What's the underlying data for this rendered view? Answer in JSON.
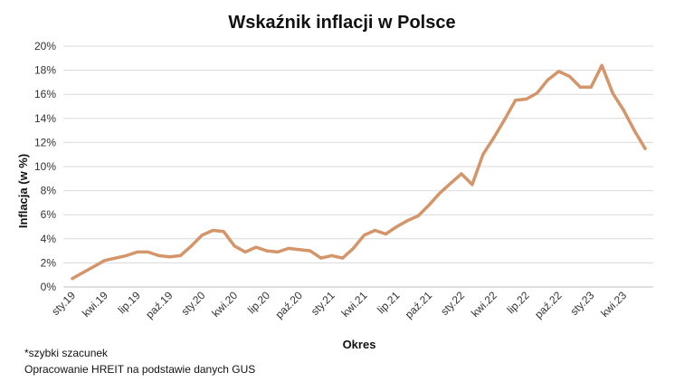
{
  "chart_data": {
    "type": "line",
    "title": "Wskaźnik inflacji w Polsce",
    "xlabel": "Okres",
    "ylabel": "Inflacja (w %)",
    "ylim": [
      0,
      20
    ],
    "yticks": [
      "0%",
      "2%",
      "4%",
      "6%",
      "8%",
      "10%",
      "12%",
      "14%",
      "16%",
      "18%",
      "20%"
    ],
    "grid": true,
    "line_color": "#d4956a",
    "x_tick_labels": [
      "sty.19",
      "kwi.19",
      "lip.19",
      "paź.19",
      "sty.20",
      "kwi.20",
      "lip.20",
      "paź.20",
      "sty.21",
      "kwi.21",
      "lip.21",
      "paź.21",
      "sty.22",
      "kwi.22",
      "lip.22",
      "paź.22",
      "sty.23",
      "kwi.23"
    ],
    "x": [
      "sty.19",
      "lut.19",
      "mar.19",
      "kwi.19",
      "maj.19",
      "cze.19",
      "lip.19",
      "sie.19",
      "wrz.19",
      "paź.19",
      "lis.19",
      "gru.19",
      "sty.20",
      "lut.20",
      "mar.20",
      "kwi.20",
      "maj.20",
      "cze.20",
      "lip.20",
      "sie.20",
      "wrz.20",
      "paź.20",
      "lis.20",
      "gru.20",
      "sty.21",
      "lut.21",
      "mar.21",
      "kwi.21",
      "maj.21",
      "cze.21",
      "lip.21",
      "sie.21",
      "wrz.21",
      "paź.21",
      "lis.21",
      "gru.21",
      "sty.22",
      "lut.22",
      "mar.22",
      "kwi.22",
      "maj.22",
      "cze.22",
      "lip.22",
      "sie.22",
      "wrz.22",
      "paź.22",
      "lis.22",
      "gru.22",
      "sty.23",
      "lut.23",
      "mar.23",
      "kwi.23",
      "maj.23",
      "cze.23"
    ],
    "series": [
      {
        "values": [
          0.7,
          1.2,
          1.7,
          2.2,
          2.4,
          2.6,
          2.9,
          2.9,
          2.6,
          2.5,
          2.6,
          3.4,
          4.3,
          4.7,
          4.6,
          3.4,
          2.9,
          3.3,
          3.0,
          2.9,
          3.2,
          3.1,
          3.0,
          2.4,
          2.6,
          2.4,
          3.2,
          4.3,
          4.7,
          4.4,
          5.0,
          5.5,
          5.9,
          6.8,
          7.8,
          8.6,
          9.4,
          8.5,
          11.0,
          12.4,
          13.9,
          15.5,
          15.6,
          16.1,
          17.2,
          17.9,
          17.5,
          16.6,
          16.6,
          18.4,
          16.1,
          14.7,
          13.0,
          11.5
        ]
      }
    ]
  },
  "footnotes": {
    "note1": "*szybki szacunek",
    "note2": "Opracowanie HREIT na podstawie danych GUS"
  }
}
